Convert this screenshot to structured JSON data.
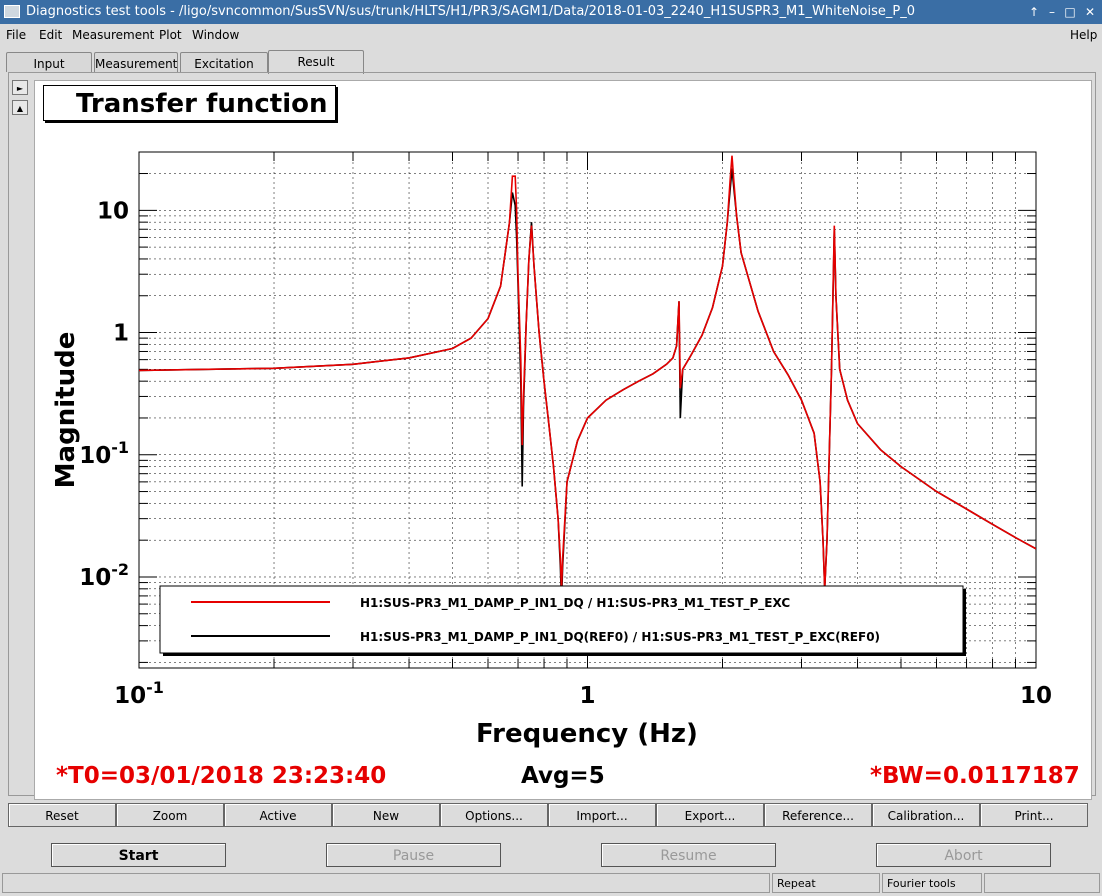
{
  "window": {
    "title": "Diagnostics test tools - /ligo/svncommon/SusSVN/sus/trunk/HLTS/H1/PR3/SAGM1/Data/2018-01-03_2240_H1SUSPR3_M1_WhiteNoise_P_0",
    "controls": [
      "↑",
      "–",
      "□",
      "✕"
    ]
  },
  "menu": {
    "items": [
      "File",
      "Edit",
      "Measurement",
      "Plot",
      "Window"
    ],
    "help": "Help"
  },
  "tabs": [
    "Input",
    "Measurement",
    "Excitation",
    "Result"
  ],
  "active_tab": "Result",
  "side_buttons": [
    "►",
    "▲"
  ],
  "plot": {
    "title": "Transfer function"
  },
  "chart_data": {
    "type": "line",
    "title": "Transfer function",
    "xlabel": "Frequency (Hz)",
    "ylabel": "Magnitude",
    "xscale": "log",
    "yscale": "log",
    "xlim": [
      0.1,
      10
    ],
    "ylim": [
      0.0018,
      30
    ],
    "x_ticks": [
      "10^-1",
      "1",
      "10"
    ],
    "y_ticks": [
      "10^-2",
      "10^-1",
      "1",
      "10"
    ],
    "grid": true,
    "legend_position": "bottom",
    "series": [
      {
        "name": "H1:SUS-PR3_M1_DAMP_P_IN1_DQ / H1:SUS-PR3_M1_TEST_P_EXC",
        "color": "#e60000",
        "points": [
          [
            0.1,
            0.49
          ],
          [
            0.2,
            0.51
          ],
          [
            0.3,
            0.55
          ],
          [
            0.4,
            0.62
          ],
          [
            0.5,
            0.74
          ],
          [
            0.55,
            0.9
          ],
          [
            0.6,
            1.3
          ],
          [
            0.64,
            2.4
          ],
          [
            0.67,
            8
          ],
          [
            0.68,
            19
          ],
          [
            0.69,
            19
          ],
          [
            0.695,
            10
          ],
          [
            0.7,
            3
          ],
          [
            0.71,
            0.6
          ],
          [
            0.715,
            0.12
          ],
          [
            0.72,
            0.3
          ],
          [
            0.73,
            1.2
          ],
          [
            0.74,
            4
          ],
          [
            0.75,
            7.5
          ],
          [
            0.76,
            3.5
          ],
          [
            0.78,
            1
          ],
          [
            0.8,
            0.4
          ],
          [
            0.82,
            0.18
          ],
          [
            0.84,
            0.08
          ],
          [
            0.86,
            0.03
          ],
          [
            0.87,
            0.014
          ],
          [
            0.875,
            0.008
          ],
          [
            0.88,
            0.014
          ],
          [
            0.9,
            0.06
          ],
          [
            0.95,
            0.13
          ],
          [
            1.0,
            0.2
          ],
          [
            1.1,
            0.28
          ],
          [
            1.2,
            0.34
          ],
          [
            1.3,
            0.4
          ],
          [
            1.4,
            0.46
          ],
          [
            1.5,
            0.55
          ],
          [
            1.55,
            0.62
          ],
          [
            1.58,
            0.78
          ],
          [
            1.6,
            1.8
          ],
          [
            1.61,
            0.35
          ],
          [
            1.63,
            0.5
          ],
          [
            1.7,
            0.65
          ],
          [
            1.8,
            0.95
          ],
          [
            1.9,
            1.6
          ],
          [
            2.0,
            3.5
          ],
          [
            2.05,
            8
          ],
          [
            2.08,
            18
          ],
          [
            2.1,
            28
          ],
          [
            2.12,
            17
          ],
          [
            2.15,
            9
          ],
          [
            2.2,
            4.5
          ],
          [
            2.4,
            1.5
          ],
          [
            2.6,
            0.7
          ],
          [
            2.8,
            0.45
          ],
          [
            3.0,
            0.28
          ],
          [
            3.2,
            0.15
          ],
          [
            3.3,
            0.06
          ],
          [
            3.35,
            0.02
          ],
          [
            3.38,
            0.008
          ],
          [
            3.42,
            0.02
          ],
          [
            3.5,
            0.5
          ],
          [
            3.55,
            7.5
          ],
          [
            3.58,
            2
          ],
          [
            3.65,
            0.5
          ],
          [
            3.8,
            0.28
          ],
          [
            4.0,
            0.18
          ],
          [
            4.5,
            0.11
          ],
          [
            5.0,
            0.08
          ],
          [
            6.0,
            0.05
          ],
          [
            7.0,
            0.036
          ],
          [
            8.0,
            0.027
          ],
          [
            9.0,
            0.021
          ],
          [
            10.0,
            0.017
          ]
        ]
      },
      {
        "name": "H1:SUS-PR3_M1_DAMP_P_IN1_DQ(REF0) / H1:SUS-PR3_M1_TEST_P_EXC(REF0)",
        "color": "#000000",
        "points": [
          [
            0.1,
            0.49
          ],
          [
            0.2,
            0.51
          ],
          [
            0.3,
            0.55
          ],
          [
            0.4,
            0.62
          ],
          [
            0.5,
            0.74
          ],
          [
            0.55,
            0.9
          ],
          [
            0.6,
            1.3
          ],
          [
            0.64,
            2.4
          ],
          [
            0.67,
            8
          ],
          [
            0.68,
            14
          ],
          [
            0.69,
            11
          ],
          [
            0.695,
            6
          ],
          [
            0.7,
            2.5
          ],
          [
            0.71,
            0.4
          ],
          [
            0.715,
            0.055
          ],
          [
            0.72,
            0.25
          ],
          [
            0.73,
            1.2
          ],
          [
            0.74,
            4
          ],
          [
            0.75,
            8
          ],
          [
            0.76,
            3.5
          ],
          [
            0.78,
            1
          ],
          [
            0.8,
            0.4
          ],
          [
            0.82,
            0.18
          ],
          [
            0.84,
            0.08
          ],
          [
            0.86,
            0.03
          ],
          [
            0.87,
            0.012
          ],
          [
            0.875,
            0.006
          ],
          [
            0.88,
            0.012
          ],
          [
            0.9,
            0.06
          ],
          [
            0.95,
            0.13
          ],
          [
            1.0,
            0.2
          ],
          [
            1.1,
            0.28
          ],
          [
            1.2,
            0.34
          ],
          [
            1.3,
            0.4
          ],
          [
            1.4,
            0.46
          ],
          [
            1.5,
            0.55
          ],
          [
            1.55,
            0.62
          ],
          [
            1.58,
            0.78
          ],
          [
            1.6,
            1.8
          ],
          [
            1.61,
            0.2
          ],
          [
            1.63,
            0.5
          ],
          [
            1.7,
            0.65
          ],
          [
            1.8,
            0.95
          ],
          [
            1.9,
            1.6
          ],
          [
            2.0,
            3.5
          ],
          [
            2.05,
            8
          ],
          [
            2.08,
            15
          ],
          [
            2.1,
            22
          ],
          [
            2.12,
            15
          ],
          [
            2.15,
            9
          ],
          [
            2.2,
            4.5
          ],
          [
            2.4,
            1.5
          ],
          [
            2.6,
            0.7
          ],
          [
            2.8,
            0.45
          ],
          [
            3.0,
            0.28
          ],
          [
            3.2,
            0.15
          ],
          [
            3.3,
            0.06
          ],
          [
            3.35,
            0.02
          ],
          [
            3.38,
            0.008
          ],
          [
            3.42,
            0.02
          ],
          [
            3.5,
            0.5
          ],
          [
            3.55,
            7
          ],
          [
            3.58,
            2
          ],
          [
            3.65,
            0.5
          ],
          [
            3.8,
            0.28
          ],
          [
            4.0,
            0.18
          ],
          [
            4.5,
            0.11
          ],
          [
            5.0,
            0.08
          ],
          [
            6.0,
            0.05
          ],
          [
            7.0,
            0.036
          ],
          [
            8.0,
            0.027
          ],
          [
            9.0,
            0.021
          ],
          [
            10.0,
            0.017
          ]
        ]
      }
    ]
  },
  "status": {
    "t0": "*T0=03/01/2018 23:23:40",
    "avg": "Avg=5",
    "bw": "*BW=0.0117187"
  },
  "plot_buttons": [
    "Reset",
    "Zoom",
    "Active",
    "New",
    "Options...",
    "Import...",
    "Export...",
    "Reference...",
    "Calibration...",
    "Print..."
  ],
  "run_buttons": {
    "start": "Start",
    "pause": "Pause",
    "resume": "Resume",
    "abort": "Abort"
  },
  "statusbar": {
    "repeat": "Repeat",
    "tool": "Fourier tools"
  }
}
